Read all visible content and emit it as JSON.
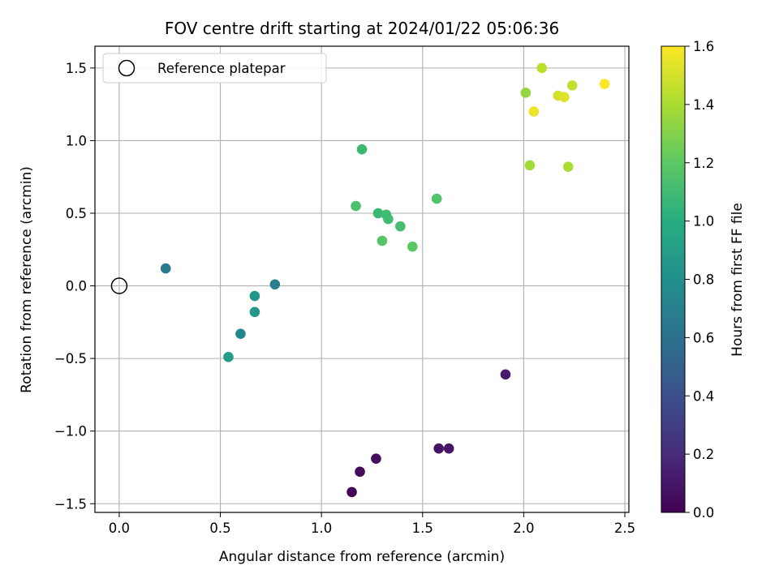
{
  "chart_data": {
    "type": "scatter",
    "title": "FOV centre drift starting at 2024/01/22 05:06:36",
    "xlabel": "Angular distance from reference (arcmin)",
    "ylabel": "Rotation from reference (arcmin)",
    "xlim": [
      -0.12,
      2.52
    ],
    "ylim": [
      -1.56,
      1.65
    ],
    "xticks": [
      0.0,
      0.5,
      1.0,
      1.5,
      2.0,
      2.5
    ],
    "xtick_labels": [
      "0.0",
      "0.5",
      "1.0",
      "1.5",
      "2.0",
      "2.5"
    ],
    "yticks": [
      -1.5,
      -1.0,
      -0.5,
      0.0,
      0.5,
      1.0,
      1.5
    ],
    "ytick_labels": [
      "−1.5",
      "−1.0",
      "−0.5",
      "0.0",
      "0.5",
      "1.0",
      "1.5"
    ],
    "grid": true,
    "colormap": "viridis",
    "colorbar": {
      "label": "Hours from first FF file",
      "range": [
        0.0,
        1.6
      ],
      "ticks": [
        0.0,
        0.2,
        0.4,
        0.6,
        0.8,
        1.0,
        1.2,
        1.4,
        1.6
      ],
      "tick_labels": [
        "0.0",
        "0.2",
        "0.4",
        "0.6",
        "0.8",
        "1.0",
        "1.2",
        "1.4",
        "1.6"
      ]
    },
    "legend": {
      "location": "top-left",
      "entries": [
        {
          "label": "Reference platepar",
          "marker": "open-circle",
          "color": "#000000"
        }
      ]
    },
    "reference_point": {
      "x": 0.0,
      "y": 0.0
    },
    "points": [
      {
        "x": 1.15,
        "y": -1.42,
        "hours": 0.02
      },
      {
        "x": 1.19,
        "y": -1.28,
        "hours": 0.04
      },
      {
        "x": 1.27,
        "y": -1.19,
        "hours": 0.06
      },
      {
        "x": 1.58,
        "y": -1.12,
        "hours": 0.08
      },
      {
        "x": 1.63,
        "y": -1.12,
        "hours": 0.1
      },
      {
        "x": 1.91,
        "y": -0.61,
        "hours": 0.12
      },
      {
        "x": 0.23,
        "y": 0.12,
        "hours": 0.66
      },
      {
        "x": 0.77,
        "y": 0.01,
        "hours": 0.7
      },
      {
        "x": 0.6,
        "y": -0.33,
        "hours": 0.74
      },
      {
        "x": 0.67,
        "y": -0.07,
        "hours": 0.84
      },
      {
        "x": 0.67,
        "y": -0.18,
        "hours": 0.86
      },
      {
        "x": 0.54,
        "y": -0.49,
        "hours": 0.88
      },
      {
        "x": 1.2,
        "y": 0.94,
        "hours": 1.08
      },
      {
        "x": 1.28,
        "y": 0.5,
        "hours": 1.08
      },
      {
        "x": 1.32,
        "y": 0.49,
        "hours": 1.1
      },
      {
        "x": 1.33,
        "y": 0.46,
        "hours": 1.1
      },
      {
        "x": 1.39,
        "y": 0.41,
        "hours": 1.12
      },
      {
        "x": 1.17,
        "y": 0.55,
        "hours": 1.14
      },
      {
        "x": 1.57,
        "y": 0.6,
        "hours": 1.16
      },
      {
        "x": 1.3,
        "y": 0.31,
        "hours": 1.18
      },
      {
        "x": 1.45,
        "y": 0.27,
        "hours": 1.2
      },
      {
        "x": 2.01,
        "y": 1.33,
        "hours": 1.34
      },
      {
        "x": 2.03,
        "y": 0.83,
        "hours": 1.38
      },
      {
        "x": 2.22,
        "y": 0.82,
        "hours": 1.4
      },
      {
        "x": 2.09,
        "y": 1.5,
        "hours": 1.44
      },
      {
        "x": 2.24,
        "y": 1.38,
        "hours": 1.46
      },
      {
        "x": 2.17,
        "y": 1.31,
        "hours": 1.5
      },
      {
        "x": 2.2,
        "y": 1.3,
        "hours": 1.52
      },
      {
        "x": 2.05,
        "y": 1.2,
        "hours": 1.56
      },
      {
        "x": 2.4,
        "y": 1.39,
        "hours": 1.6
      }
    ]
  }
}
